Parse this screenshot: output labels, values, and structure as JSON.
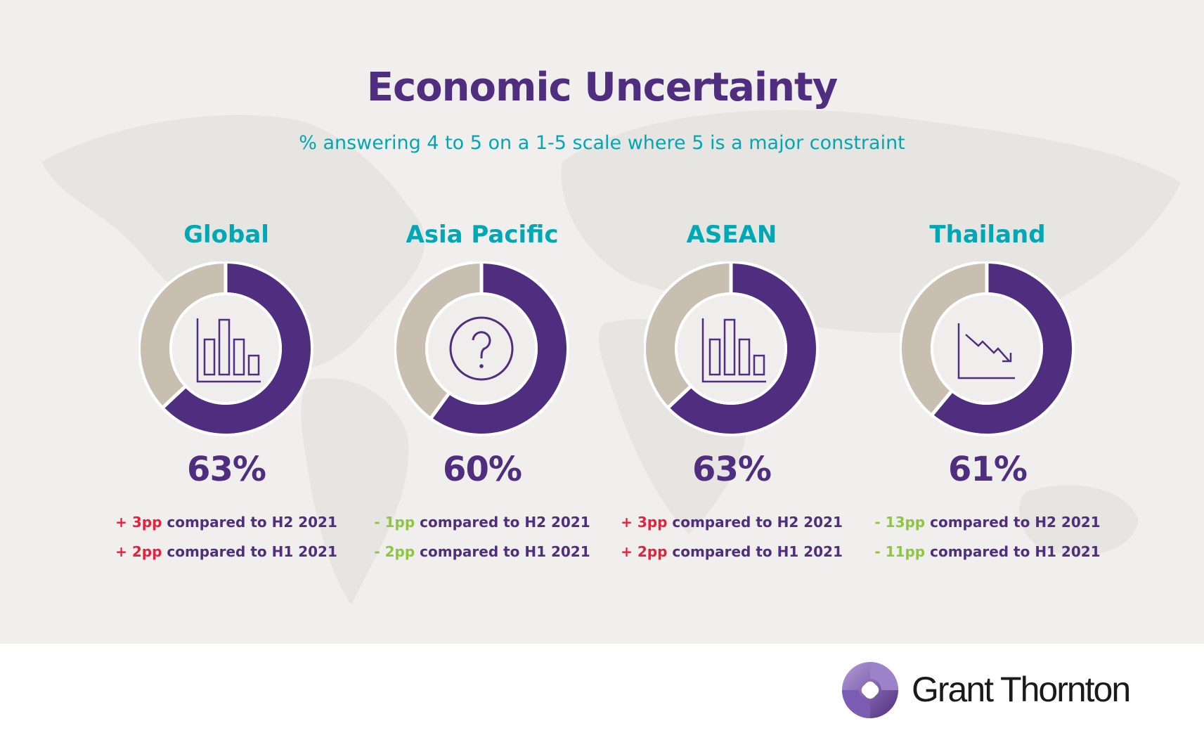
{
  "title": "Economic Uncertainty",
  "subtitle": "% answering 4 to 5 on a 1-5 scale where 5 is a major constraint",
  "colors": {
    "primary": "#4f2d7f",
    "secondary": "#c8bfb1",
    "accent": "#00a7b5",
    "increase": "#e8203a",
    "decrease": "#8dc63f"
  },
  "chart_data": {
    "type": "pie",
    "variant": "donut",
    "title": "Economic Uncertainty",
    "series": [
      {
        "name": "Global",
        "value": 63,
        "label": "63%",
        "icon": "bar-chart-icon",
        "changes": [
          {
            "delta": "+ 3pp",
            "text": "compared to H2 2021",
            "direction": "up"
          },
          {
            "delta": "+ 2pp",
            "text": "compared to H1 2021",
            "direction": "up"
          }
        ]
      },
      {
        "name": "Asia Pacific",
        "value": 60,
        "label": "60%",
        "icon": "question-icon",
        "changes": [
          {
            "delta": "- 1pp",
            "text": "compared to H2 2021",
            "direction": "down"
          },
          {
            "delta": "- 2pp",
            "text": "compared to H1 2021",
            "direction": "down"
          }
        ]
      },
      {
        "name": "ASEAN",
        "value": 63,
        "label": "63%",
        "icon": "bar-chart-icon",
        "changes": [
          {
            "delta": "+ 3pp",
            "text": "compared to H2 2021",
            "direction": "up"
          },
          {
            "delta": "+ 2pp",
            "text": "compared to H1 2021",
            "direction": "up"
          }
        ]
      },
      {
        "name": "Thailand",
        "value": 61,
        "label": "61%",
        "icon": "trend-down-icon",
        "changes": [
          {
            "delta": "- 13pp",
            "text": "compared to H2 2021",
            "direction": "down"
          },
          {
            "delta": "- 11pp",
            "text": "compared to H1 2021",
            "direction": "down"
          }
        ]
      }
    ]
  },
  "footer": {
    "brand": "Grant Thornton"
  }
}
